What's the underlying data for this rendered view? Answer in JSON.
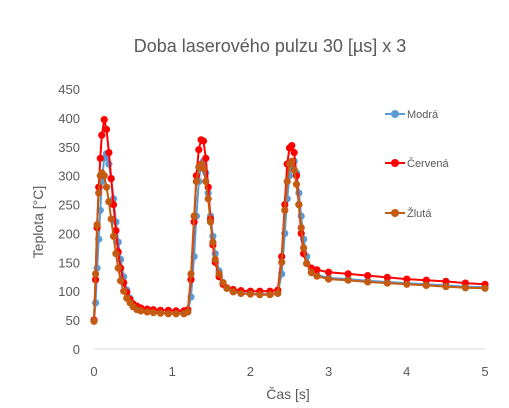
{
  "chart_data": {
    "type": "scatter",
    "title": "Doba laserového pulzu 30 [µs] x 3",
    "xlabel": "Čas [s]",
    "ylabel": "Teplota [°C]",
    "xlim": [
      0,
      5
    ],
    "ylim": [
      0,
      450
    ],
    "xticks": [
      "0",
      "1",
      "2",
      "3",
      "4",
      "5"
    ],
    "yticks": [
      "0",
      "50",
      "100",
      "150",
      "200",
      "250",
      "300",
      "350",
      "400",
      "450"
    ],
    "grid": false,
    "legend_position": "right",
    "lines_with_markers": true,
    "series": [
      {
        "name": "Modrá",
        "color": "#5B9BD5",
        "x": [
          0.0,
          0.02,
          0.04,
          0.06,
          0.08,
          0.1,
          0.13,
          0.16,
          0.19,
          0.22,
          0.25,
          0.28,
          0.31,
          0.34,
          0.38,
          0.42,
          0.46,
          0.5,
          0.55,
          0.6,
          0.68,
          0.76,
          0.85,
          0.95,
          1.05,
          1.15,
          1.2,
          1.24,
          1.28,
          1.31,
          1.34,
          1.37,
          1.4,
          1.43,
          1.46,
          1.49,
          1.52,
          1.55,
          1.6,
          1.65,
          1.7,
          1.78,
          1.88,
          2.0,
          2.12,
          2.25,
          2.35,
          2.4,
          2.44,
          2.47,
          2.5,
          2.53,
          2.56,
          2.59,
          2.62,
          2.65,
          2.68,
          2.72,
          2.78,
          2.85,
          3.0,
          3.25,
          3.5,
          3.75,
          4.0,
          4.25,
          4.5,
          4.75,
          5.0
        ],
        "y": [
          50,
          80,
          140,
          190,
          240,
          290,
          330,
          338,
          320,
          295,
          260,
          220,
          185,
          155,
          125,
          102,
          88,
          78,
          72,
          68,
          66,
          64,
          63,
          62,
          62,
          62,
          64,
          90,
          160,
          230,
          290,
          320,
          325,
          305,
          270,
          230,
          195,
          165,
          135,
          115,
          105,
          99,
          97,
          96,
          95,
          95,
          97,
          130,
          200,
          260,
          300,
          320,
          325,
          305,
          270,
          230,
          190,
          160,
          138,
          128,
          123,
          121,
          118,
          116,
          114,
          112,
          110,
          108,
          107
        ]
      },
      {
        "name": "Červená",
        "color": "#FF0000",
        "x": [
          0.0,
          0.02,
          0.04,
          0.06,
          0.08,
          0.1,
          0.13,
          0.16,
          0.19,
          0.22,
          0.25,
          0.28,
          0.31,
          0.34,
          0.38,
          0.42,
          0.46,
          0.5,
          0.55,
          0.6,
          0.68,
          0.76,
          0.85,
          0.95,
          1.05,
          1.15,
          1.2,
          1.24,
          1.28,
          1.31,
          1.34,
          1.37,
          1.4,
          1.43,
          1.46,
          1.49,
          1.52,
          1.55,
          1.6,
          1.65,
          1.7,
          1.78,
          1.88,
          2.0,
          2.12,
          2.25,
          2.35,
          2.4,
          2.44,
          2.47,
          2.5,
          2.53,
          2.56,
          2.59,
          2.62,
          2.65,
          2.68,
          2.72,
          2.78,
          2.85,
          3.0,
          3.25,
          3.5,
          3.75,
          4.0,
          4.25,
          4.5,
          4.75,
          5.0
        ],
        "y": [
          50,
          120,
          210,
          280,
          330,
          370,
          397,
          380,
          340,
          295,
          250,
          205,
          168,
          140,
          115,
          98,
          86,
          78,
          74,
          71,
          69,
          68,
          67,
          67,
          66,
          66,
          68,
          120,
          220,
          300,
          345,
          362,
          360,
          330,
          280,
          225,
          180,
          150,
          125,
          112,
          106,
          103,
          101,
          100,
          100,
          100,
          102,
          160,
          250,
          320,
          348,
          352,
          340,
          300,
          250,
          200,
          165,
          148,
          140,
          137,
          133,
          130,
          127,
          124,
          121,
          119,
          117,
          114,
          112
        ]
      },
      {
        "name": "Žlutá",
        "color": "#C55A11",
        "x": [
          0.0,
          0.02,
          0.04,
          0.06,
          0.08,
          0.1,
          0.13,
          0.16,
          0.19,
          0.22,
          0.25,
          0.28,
          0.31,
          0.34,
          0.38,
          0.42,
          0.46,
          0.5,
          0.55,
          0.6,
          0.68,
          0.76,
          0.85,
          0.95,
          1.05,
          1.15,
          1.2,
          1.24,
          1.28,
          1.31,
          1.34,
          1.37,
          1.4,
          1.43,
          1.46,
          1.49,
          1.52,
          1.55,
          1.6,
          1.65,
          1.7,
          1.78,
          1.88,
          2.0,
          2.12,
          2.25,
          2.35,
          2.4,
          2.44,
          2.47,
          2.5,
          2.53,
          2.56,
          2.59,
          2.62,
          2.65,
          2.68,
          2.72,
          2.78,
          2.85,
          3.0,
          3.25,
          3.5,
          3.75,
          4.0,
          4.25,
          4.5,
          4.75,
          5.0
        ],
        "y": [
          48,
          130,
          215,
          270,
          300,
          305,
          300,
          280,
          255,
          225,
          195,
          165,
          140,
          118,
          100,
          88,
          80,
          73,
          68,
          66,
          64,
          63,
          62,
          61,
          61,
          61,
          64,
          130,
          230,
          290,
          315,
          320,
          312,
          290,
          260,
          220,
          185,
          155,
          130,
          115,
          105,
          99,
          96,
          95,
          94,
          94,
          96,
          150,
          240,
          290,
          320,
          325,
          310,
          285,
          250,
          210,
          175,
          148,
          132,
          126,
          121,
          119,
          116,
          114,
          112,
          110,
          108,
          106,
          105
        ]
      }
    ]
  }
}
